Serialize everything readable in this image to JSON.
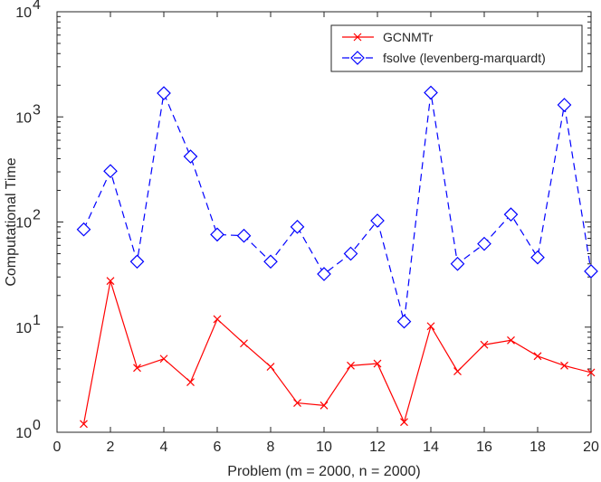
{
  "chart_data": {
    "type": "line",
    "title": "",
    "xlabel": "Problem (m = 2000, n = 2000)",
    "ylabel": "Computational Time",
    "xlim": [
      0,
      20
    ],
    "ylim": [
      1,
      10000
    ],
    "yscale": "log",
    "xticks": [
      0,
      2,
      4,
      6,
      8,
      10,
      12,
      14,
      16,
      18,
      20
    ],
    "yticks": [
      {
        "base": "10",
        "exp": "0",
        "value": 1
      },
      {
        "base": "10",
        "exp": "1",
        "value": 10
      },
      {
        "base": "10",
        "exp": "2",
        "value": 100
      },
      {
        "base": "10",
        "exp": "3",
        "value": 1000
      },
      {
        "base": "10",
        "exp": "4",
        "value": 10000
      }
    ],
    "x": [
      1,
      2,
      3,
      4,
      5,
      6,
      7,
      8,
      9,
      10,
      11,
      12,
      13,
      14,
      15,
      16,
      17,
      18,
      19,
      20
    ],
    "series": [
      {
        "name": "GCNMTr",
        "color": "#ff0000",
        "marker": "x",
        "line_style": "solid",
        "values": [
          1.2,
          27.5,
          4.1,
          5.0,
          3.0,
          11.9,
          7.0,
          4.2,
          1.9,
          1.8,
          4.3,
          4.5,
          1.25,
          10.2,
          3.8,
          6.8,
          7.5,
          5.3,
          4.3,
          3.7
        ]
      },
      {
        "name": "fsolve (levenberg-marquardt)",
        "color": "#0000ff",
        "marker": "diamond",
        "line_style": "dashed",
        "values": [
          85,
          305,
          42,
          1680,
          420,
          76,
          74,
          42,
          90,
          32,
          50,
          103,
          11.3,
          1700,
          40,
          62,
          118,
          46,
          1300,
          34
        ]
      }
    ],
    "legend": {
      "placement": "top-right",
      "entries": [
        "GCNMTr",
        "fsolve (levenberg-marquardt)"
      ]
    },
    "grid": false
  }
}
